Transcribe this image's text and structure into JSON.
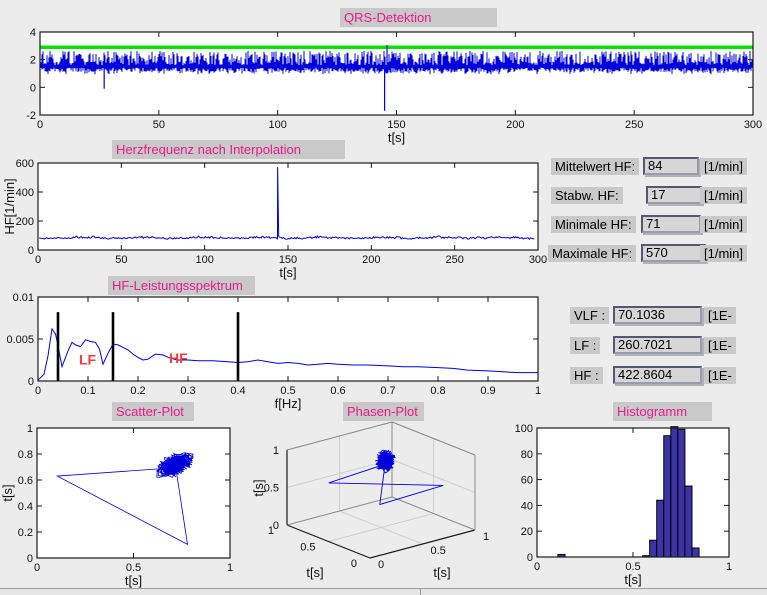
{
  "app": {
    "background": "#ececec",
    "chip_gray": "#c9c9c9",
    "accent_pink": "#ec1a8e",
    "signal_blue": "#0000dd",
    "threshold_green": "#00e400",
    "band_red": "#f23d3d",
    "hist_fill": "#3b34a6"
  },
  "titles": {
    "qrs": "QRS-Detektion",
    "hr": "Herzfrequenz nach Interpolation",
    "spectrum": "HF-Leistungsspektrum",
    "scatter": "Scatter-Plot",
    "phase": "Phasen-Plot",
    "histogram": "Histogramm"
  },
  "stats_fields": [
    {
      "label": "Mittelwert HF:",
      "value": "84",
      "unit": "[1/min]"
    },
    {
      "label": "Stabw. HF:",
      "value": "17",
      "unit": "[1/min]"
    },
    {
      "label": "Minimale HF:",
      "value": "71",
      "unit": "[1/min]"
    },
    {
      "label": "Maximale HF:",
      "value": "570",
      "unit": "[1/min]"
    }
  ],
  "power_fields": [
    {
      "label": "VLF :",
      "value": "70.1036",
      "unit": "[1E-"
    },
    {
      "label": "LF :",
      "value": "260.7021",
      "unit": "[1E-"
    },
    {
      "label": "HF :",
      "value": "422.8604",
      "unit": "[1E-"
    }
  ],
  "chart_data": [
    {
      "id": "qrs",
      "type": "line",
      "title": "QRS-Detektion",
      "xlabel": "t[s]",
      "xlim": [
        0,
        300
      ],
      "ylim": [
        -2,
        4
      ],
      "xticks": [
        0,
        50,
        100,
        150,
        200,
        250,
        300
      ],
      "yticks": [
        -2,
        0,
        2,
        4
      ],
      "threshold": {
        "y": 2.9,
        "color": "#00e400"
      },
      "signal": {
        "seed": 9,
        "baseline": 1.35,
        "band": [
          1.12,
          1.65
        ],
        "spike_top_range": [
          1.95,
          2.65
        ],
        "beat_interval_s": 0.72,
        "artifacts": [
          {
            "t": 27,
            "v": -0.1,
            "kind": "drop"
          },
          {
            "t": 145,
            "v": -1.7,
            "kind": "drop"
          },
          {
            "t": 146,
            "v": 3.05,
            "kind": "spike"
          }
        ]
      }
    },
    {
      "id": "heart_rate",
      "type": "line",
      "title": "Herzfrequenz nach Interpolation",
      "xlabel": "t[s]",
      "ylabel": "HF[1/min]",
      "xlim": [
        0,
        300
      ],
      "ylim": [
        0,
        600
      ],
      "xticks": [
        0,
        50,
        100,
        150,
        200,
        250,
        300
      ],
      "yticks": [
        0,
        200,
        400,
        600
      ],
      "mean_hf": 84,
      "spike": {
        "t": 145,
        "hf": 570
      }
    },
    {
      "id": "spectrum",
      "type": "line",
      "title": "HF-Leistungsspektrum",
      "xlabel": "f[Hz]",
      "xlim": [
        0,
        1
      ],
      "ylim": [
        0,
        0.01
      ],
      "xticks": [
        0,
        0.1,
        0.2,
        0.3,
        0.4,
        0.5,
        0.6,
        0.7,
        0.8,
        0.9,
        1
      ],
      "yticks": [
        0,
        0.005,
        0.01
      ],
      "band_lines": [
        0.04,
        0.15,
        0.4
      ],
      "band_line_top": 0.0082,
      "band_labels": [
        {
          "text": "LF",
          "f": 0.082,
          "p": 0.00195
        },
        {
          "text": "HF",
          "f": 0.262,
          "p": 0.00215
        }
      ],
      "points": [
        [
          0,
          0.0001
        ],
        [
          0.012,
          0.0008
        ],
        [
          0.02,
          0.003
        ],
        [
          0.028,
          0.0062
        ],
        [
          0.035,
          0.0056
        ],
        [
          0.04,
          0.0042
        ],
        [
          0.048,
          0.0017
        ],
        [
          0.06,
          0.0036
        ],
        [
          0.068,
          0.0046
        ],
        [
          0.075,
          0.0043
        ],
        [
          0.085,
          0.0041
        ],
        [
          0.095,
          0.0049
        ],
        [
          0.105,
          0.0047
        ],
        [
          0.115,
          0.0046
        ],
        [
          0.123,
          0.0038
        ],
        [
          0.13,
          0.002
        ],
        [
          0.14,
          0.0033
        ],
        [
          0.15,
          0.0044
        ],
        [
          0.16,
          0.0043
        ],
        [
          0.17,
          0.004
        ],
        [
          0.18,
          0.0037
        ],
        [
          0.19,
          0.0032
        ],
        [
          0.2,
          0.0028
        ],
        [
          0.21,
          0.0025
        ],
        [
          0.22,
          0.0026
        ],
        [
          0.235,
          0.0032
        ],
        [
          0.25,
          0.0031
        ],
        [
          0.265,
          0.0027
        ],
        [
          0.28,
          0.0025
        ],
        [
          0.3,
          0.0025
        ],
        [
          0.32,
          0.0024
        ],
        [
          0.35,
          0.0024
        ],
        [
          0.38,
          0.0023
        ],
        [
          0.4,
          0.0022
        ],
        [
          0.42,
          0.0023
        ],
        [
          0.44,
          0.0025
        ],
        [
          0.46,
          0.0023
        ],
        [
          0.48,
          0.0021
        ],
        [
          0.5,
          0.0022
        ],
        [
          0.52,
          0.0021
        ],
        [
          0.54,
          0.0019
        ],
        [
          0.56,
          0.002
        ],
        [
          0.58,
          0.0021
        ],
        [
          0.6,
          0.002
        ],
        [
          0.63,
          0.0019
        ],
        [
          0.66,
          0.0019
        ],
        [
          0.7,
          0.0018
        ],
        [
          0.73,
          0.0017
        ],
        [
          0.76,
          0.0017
        ],
        [
          0.8,
          0.0016
        ],
        [
          0.83,
          0.0015
        ],
        [
          0.86,
          0.0013
        ],
        [
          0.9,
          0.0012
        ],
        [
          0.93,
          0.0011
        ],
        [
          0.96,
          0.001
        ],
        [
          1,
          0.001
        ]
      ]
    },
    {
      "id": "scatter",
      "type": "scatter",
      "title": "Scatter-Plot",
      "xlabel": "t[s]",
      "ylabel": "t[s]",
      "xlim": [
        0,
        1
      ],
      "ylim": [
        0,
        1
      ],
      "xticks": [
        0,
        0.5,
        1
      ],
      "yticks": [
        0,
        0.2,
        0.4,
        0.6,
        0.8,
        1
      ]
    },
    {
      "id": "phase",
      "type": "line3d",
      "title": "Phasen-Plot",
      "xlabel": "t[s]",
      "ylabel": "t[s]",
      "zlabel": "t[s]",
      "xticks": [
        0,
        0.5,
        1
      ],
      "yticks": [
        0,
        0.5,
        1
      ],
      "zticks": [
        0,
        0.5,
        1
      ]
    },
    {
      "id": "histogram",
      "type": "bar",
      "title": "Histogramm",
      "xlabel": "t[s]",
      "xlim": [
        0,
        1
      ],
      "ylim": [
        0,
        100
      ],
      "xticks": [
        0,
        0.5,
        1
      ],
      "yticks": [
        0,
        20,
        40,
        60,
        80,
        100
      ],
      "bin_start": 0.109,
      "bin_width": 0.03675,
      "counts": [
        2,
        0,
        0,
        0,
        0,
        0,
        0,
        0,
        0,
        0,
        0,
        0,
        1,
        13,
        44,
        94,
        101,
        99,
        55,
        7
      ]
    },
    {
      "id": "rr_series",
      "type": "series-params",
      "n": 418,
      "mean_rr": 0.715,
      "sd_rr": 0.045,
      "clip": [
        0.56,
        0.85
      ],
      "seed": 11,
      "ectopic": {
        "index": 200,
        "values": [
          0.78,
          0.105,
          0.63
        ]
      }
    }
  ]
}
